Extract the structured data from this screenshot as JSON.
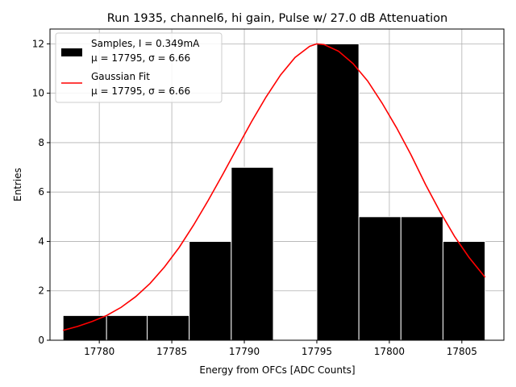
{
  "chart_data": {
    "type": "bar",
    "title": "Run 1935, channel6, hi gain, Pulse w/ 27.0 dB Attenuation",
    "xlabel": "Energy from OFCs [ADC Counts]",
    "ylabel": "Entries",
    "xlim": [
      17776.6,
      17807.9
    ],
    "ylim": [
      0,
      12.6
    ],
    "xticks": [
      17780,
      17785,
      17790,
      17795,
      17800,
      17805
    ],
    "yticks": [
      0,
      2,
      4,
      6,
      8,
      10,
      12
    ],
    "grid": true,
    "legend_position": "top-left",
    "bar_color": "#000000",
    "bar_edge_color": "#ffffff",
    "fit_color": "#ff0000",
    "bins": [
      {
        "x0": 17777.5,
        "x1": 17780.5,
        "count": 1
      },
      {
        "x0": 17780.5,
        "x1": 17783.3,
        "count": 1
      },
      {
        "x0": 17783.3,
        "x1": 17786.2,
        "count": 1
      },
      {
        "x0": 17786.2,
        "x1": 17789.1,
        "count": 4
      },
      {
        "x0": 17789.1,
        "x1": 17792.0,
        "count": 7
      },
      {
        "x0": 17795.0,
        "x1": 17797.9,
        "count": 12
      },
      {
        "x0": 17797.9,
        "x1": 17800.8,
        "count": 5
      },
      {
        "x0": 17800.8,
        "x1": 17803.7,
        "count": 5
      },
      {
        "x0": 17803.7,
        "x1": 17806.6,
        "count": 4
      }
    ],
    "series": [
      {
        "name": "Samples, I = 0.349mA",
        "stats": "μ = 17795, σ = 6.66",
        "kind": "histogram"
      },
      {
        "name": "Gaussian Fit",
        "stats": "μ = 17795, σ = 6.66",
        "kind": "line",
        "x": [
          17777.5,
          17778.5,
          17779.5,
          17780.5,
          17781.5,
          17782.5,
          17783.5,
          17784.5,
          17785.5,
          17786.5,
          17787.5,
          17788.5,
          17789.5,
          17790.5,
          17791.5,
          17792.5,
          17793.5,
          17794.5,
          17795.0,
          17795.5,
          17796.5,
          17797.5,
          17798.5,
          17799.5,
          17800.5,
          17801.5,
          17802.5,
          17803.5,
          17804.5,
          17805.5,
          17806.6
        ],
        "y": [
          0.4,
          0.56,
          0.76,
          1.0,
          1.33,
          1.76,
          2.3,
          2.97,
          3.75,
          4.66,
          5.65,
          6.7,
          7.78,
          8.85,
          9.85,
          10.74,
          11.45,
          11.9,
          12.0,
          11.97,
          11.7,
          11.2,
          10.5,
          9.6,
          8.6,
          7.5,
          6.3,
          5.2,
          4.2,
          3.35,
          2.55
        ]
      }
    ]
  }
}
